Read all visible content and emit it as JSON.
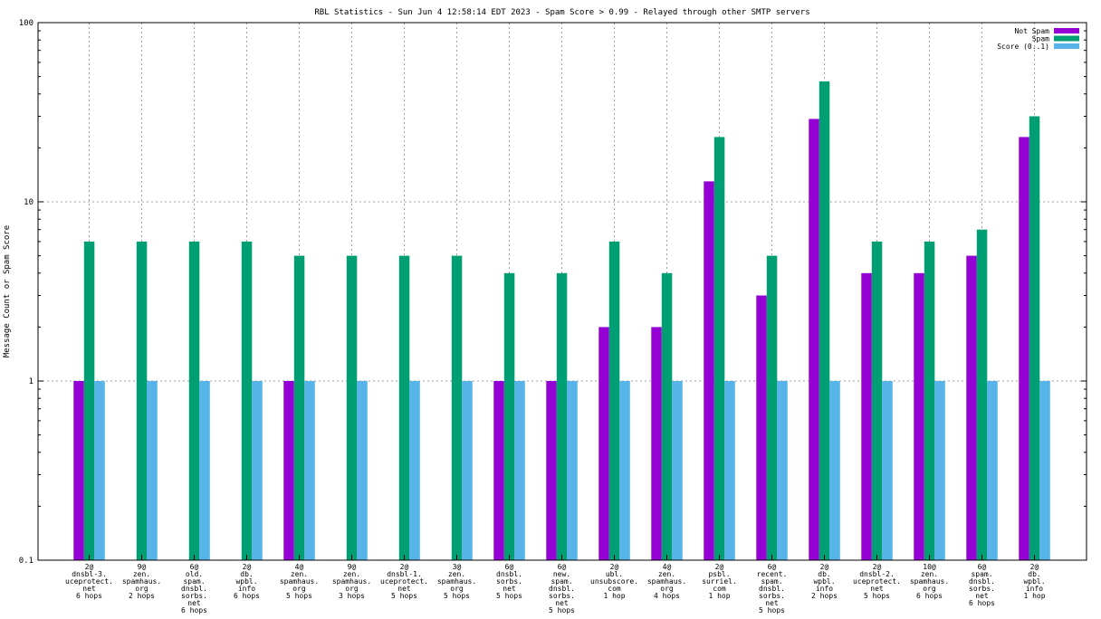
{
  "chart_data": {
    "type": "bar",
    "title": "RBL Statistics - Sun Jun  4 12:58:14 EDT 2023 - Spam Score > 0.99 - Relayed through other SMTP servers",
    "xlabel": "",
    "ylabel": "Message Count or Spam Score",
    "yscale": "log",
    "ylim": [
      0.1,
      100
    ],
    "yticks": [
      "0.1",
      "1",
      "10",
      "100"
    ],
    "grid": true,
    "legend_position": "top-right",
    "categories": [
      [
        "2@",
        "dnsbl-3.",
        "uceprotect.",
        "net",
        "6 hops"
      ],
      [
        "9@",
        "zen.",
        "spamhaus.",
        "org",
        "2 hops"
      ],
      [
        "6@",
        "old.",
        "spam.",
        "dnsbl.",
        "sorbs.",
        "net",
        "6 hops"
      ],
      [
        "2@",
        "db.",
        "wpbl.",
        "info",
        "6 hops"
      ],
      [
        "4@",
        "zen.",
        "spamhaus.",
        "org",
        "5 hops"
      ],
      [
        "9@",
        "zen.",
        "spamhaus.",
        "org",
        "3 hops"
      ],
      [
        "2@",
        "dnsbl-1.",
        "uceprotect.",
        "net",
        "5 hops"
      ],
      [
        "3@",
        "zen.",
        "spamhaus.",
        "org",
        "5 hops"
      ],
      [
        "6@",
        "dnsbl.",
        "sorbs.",
        "net",
        "5 hops"
      ],
      [
        "6@",
        "new.",
        "spam.",
        "dnsbl.",
        "sorbs.",
        "net",
        "5 hops"
      ],
      [
        "2@",
        "ubl.",
        "unsubscore.",
        "com",
        "1 hop"
      ],
      [
        "4@",
        "zen.",
        "spamhaus.",
        "org",
        "4 hops"
      ],
      [
        "2@",
        "psbl.",
        "surriel.",
        "com",
        "1 hop"
      ],
      [
        "6@",
        "recent.",
        "spam.",
        "dnsbl.",
        "sorbs.",
        "net",
        "5 hops"
      ],
      [
        "2@",
        "db.",
        "wpbl.",
        "info",
        "2 hops"
      ],
      [
        "2@",
        "dnsbl-2.",
        "uceprotect.",
        "net",
        "5 hops"
      ],
      [
        "10@",
        "zen.",
        "spamhaus.",
        "org",
        "6 hops"
      ],
      [
        "6@",
        "spam.",
        "dnsbl.",
        "sorbs.",
        "net",
        "6 hops"
      ],
      [
        "2@",
        "db.",
        "wpbl.",
        "info",
        "1 hop"
      ]
    ],
    "series": [
      {
        "name": "Not Spam",
        "color": "#9400d3",
        "values": [
          1,
          0,
          0,
          0,
          1,
          0,
          0,
          0,
          1,
          1,
          2,
          2,
          13,
          3,
          29,
          4,
          4,
          5,
          23
        ]
      },
      {
        "name": "Spam",
        "color": "#009e73",
        "values": [
          6,
          6,
          6,
          6,
          5,
          5,
          5,
          5,
          4,
          4,
          6,
          4,
          23,
          5,
          47,
          6,
          6,
          7,
          30
        ]
      },
      {
        "name": "Score (0..1)",
        "color": "#56b4e9",
        "values": [
          1,
          1,
          1,
          1,
          1,
          1,
          1,
          1,
          1,
          1,
          1,
          1,
          1,
          1,
          1,
          1,
          1,
          1,
          1
        ]
      }
    ]
  }
}
